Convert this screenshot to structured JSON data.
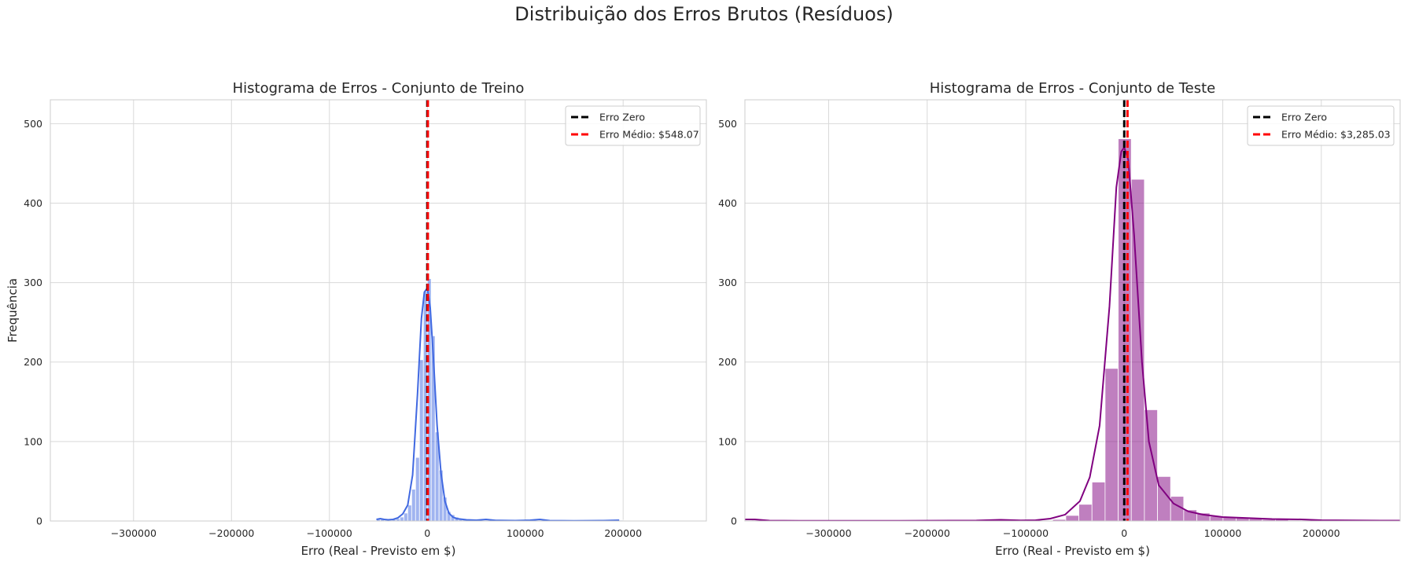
{
  "suptitle": "Distribuição dos Erros Brutos (Resíduos)",
  "chart_data": [
    {
      "type": "histogram",
      "title": "Histograma de Erros - Conjunto de Treino",
      "xlabel": "Erro (Real - Previsto em $)",
      "ylabel": "Frequência",
      "xlim": [
        -385000,
        285000
      ],
      "ylim": [
        0,
        530
      ],
      "xticks": [
        -300000,
        -200000,
        -100000,
        0,
        100000,
        200000
      ],
      "xtick_labels": [
        "−300000",
        "−200000",
        "−100000",
        "0",
        "100000",
        "200000"
      ],
      "yticks": [
        0,
        100,
        200,
        300,
        400,
        500
      ],
      "ytick_labels": [
        "0",
        "100",
        "200",
        "300",
        "400",
        "500"
      ],
      "grid": true,
      "legend_position": "top-right",
      "color": "#4169e1",
      "bin_width": 4000,
      "bins": [
        {
          "x": -52000,
          "count": 2
        },
        {
          "x": -48000,
          "count": 2
        },
        {
          "x": -44000,
          "count": 1
        },
        {
          "x": -40000,
          "count": 1
        },
        {
          "x": -36000,
          "count": 2
        },
        {
          "x": -32000,
          "count": 3
        },
        {
          "x": -28000,
          "count": 5
        },
        {
          "x": -24000,
          "count": 10
        },
        {
          "x": -20000,
          "count": 20
        },
        {
          "x": -16000,
          "count": 40
        },
        {
          "x": -12000,
          "count": 80
        },
        {
          "x": -8000,
          "count": 203
        },
        {
          "x": -4000,
          "count": 289
        },
        {
          "x": 0,
          "count": 305
        },
        {
          "x": 4000,
          "count": 233
        },
        {
          "x": 8000,
          "count": 112
        },
        {
          "x": 12000,
          "count": 64
        },
        {
          "x": 16000,
          "count": 30
        },
        {
          "x": 20000,
          "count": 12
        },
        {
          "x": 24000,
          "count": 8
        },
        {
          "x": 28000,
          "count": 5
        },
        {
          "x": 32000,
          "count": 3
        },
        {
          "x": 36000,
          "count": 2
        },
        {
          "x": 40000,
          "count": 1
        },
        {
          "x": 52000,
          "count": 1
        },
        {
          "x": 60000,
          "count": 1
        },
        {
          "x": 108000,
          "count": 1
        },
        {
          "x": 116000,
          "count": 1
        },
        {
          "x": 196000,
          "count": 1
        }
      ],
      "kde": [
        [
          -52000,
          2
        ],
        [
          -48000,
          3
        ],
        [
          -44000,
          2
        ],
        [
          -40000,
          1.5
        ],
        [
          -35000,
          2
        ],
        [
          -30000,
          4
        ],
        [
          -25000,
          9
        ],
        [
          -20000,
          20
        ],
        [
          -15000,
          58
        ],
        [
          -10000,
          160
        ],
        [
          -6000,
          255
        ],
        [
          -3000,
          288
        ],
        [
          0,
          293
        ],
        [
          3000,
          268
        ],
        [
          6000,
          210
        ],
        [
          10000,
          120
        ],
        [
          14000,
          60
        ],
        [
          18000,
          25
        ],
        [
          22000,
          10
        ],
        [
          26000,
          5
        ],
        [
          30000,
          3
        ],
        [
          40000,
          1.5
        ],
        [
          50000,
          1
        ],
        [
          60000,
          2
        ],
        [
          70000,
          0.8
        ],
        [
          90000,
          0.5
        ],
        [
          105000,
          1
        ],
        [
          115000,
          2
        ],
        [
          125000,
          0.5
        ],
        [
          150000,
          0.3
        ],
        [
          180000,
          0.5
        ],
        [
          196000,
          1
        ]
      ],
      "lines": [
        {
          "label": "Erro Zero",
          "x": 0,
          "color": "#000000"
        },
        {
          "label": "Erro Médio: $548.07",
          "x": 548.07,
          "color": "#ff0000"
        }
      ]
    },
    {
      "type": "histogram",
      "title": "Histograma de Erros - Conjunto de Teste",
      "xlabel": "Erro (Real - Previsto em $)",
      "ylabel": "",
      "xlim": [
        -385000,
        280000
      ],
      "ylim": [
        0,
        530
      ],
      "xticks": [
        -300000,
        -200000,
        -100000,
        0,
        100000,
        200000
      ],
      "xtick_labels": [
        "−300000",
        "−200000",
        "−100000",
        "0",
        "100000",
        "200000"
      ],
      "yticks": [
        0,
        100,
        200,
        300,
        400,
        500
      ],
      "ytick_labels": [
        "0",
        "100",
        "200",
        "300",
        "400",
        "500"
      ],
      "grid": true,
      "legend_position": "top-right",
      "color": "#800080",
      "bin_width": 13300,
      "bins": [
        {
          "x": -378350,
          "count": 1
        },
        {
          "x": -125000,
          "count": 1
        },
        {
          "x": -72650,
          "count": 2
        },
        {
          "x": -59350,
          "count": 7
        },
        {
          "x": -46050,
          "count": 21
        },
        {
          "x": -32750,
          "count": 49
        },
        {
          "x": -19450,
          "count": 192
        },
        {
          "x": -6150,
          "count": 481
        },
        {
          "x": 7150,
          "count": 430
        },
        {
          "x": 20450,
          "count": 140
        },
        {
          "x": 33750,
          "count": 56
        },
        {
          "x": 47050,
          "count": 31
        },
        {
          "x": 60350,
          "count": 14
        },
        {
          "x": 73650,
          "count": 10
        },
        {
          "x": 86950,
          "count": 6
        },
        {
          "x": 100250,
          "count": 5
        },
        {
          "x": 113550,
          "count": 4
        },
        {
          "x": 126850,
          "count": 3
        },
        {
          "x": 140150,
          "count": 2
        },
        {
          "x": 153450,
          "count": 2
        },
        {
          "x": 166750,
          "count": 1
        },
        {
          "x": 180050,
          "count": 1
        },
        {
          "x": 193350,
          "count": 1
        }
      ],
      "kde": [
        [
          -385000,
          2
        ],
        [
          -375000,
          2
        ],
        [
          -360000,
          0.5
        ],
        [
          -330000,
          0.2
        ],
        [
          -250000,
          0.2
        ],
        [
          -150000,
          0.6
        ],
        [
          -125000,
          1.5
        ],
        [
          -105000,
          0.8
        ],
        [
          -90000,
          1
        ],
        [
          -75000,
          3
        ],
        [
          -60000,
          8
        ],
        [
          -45000,
          25
        ],
        [
          -35000,
          55
        ],
        [
          -25000,
          120
        ],
        [
          -15000,
          270
        ],
        [
          -8000,
          420
        ],
        [
          -3000,
          465
        ],
        [
          0,
          470
        ],
        [
          4000,
          455
        ],
        [
          10000,
          360
        ],
        [
          18000,
          200
        ],
        [
          25000,
          100
        ],
        [
          35000,
          45
        ],
        [
          50000,
          22
        ],
        [
          65000,
          12
        ],
        [
          80000,
          8
        ],
        [
          100000,
          5
        ],
        [
          120000,
          4
        ],
        [
          150000,
          2.5
        ],
        [
          180000,
          2
        ],
        [
          200000,
          1
        ],
        [
          230000,
          0.7
        ],
        [
          260000,
          0.5
        ],
        [
          280000,
          0.5
        ]
      ],
      "lines": [
        {
          "label": "Erro Zero",
          "x": 0,
          "color": "#000000"
        },
        {
          "label": "Erro Médio: $3,285.03",
          "x": 3285.03,
          "color": "#ff0000"
        }
      ]
    }
  ]
}
